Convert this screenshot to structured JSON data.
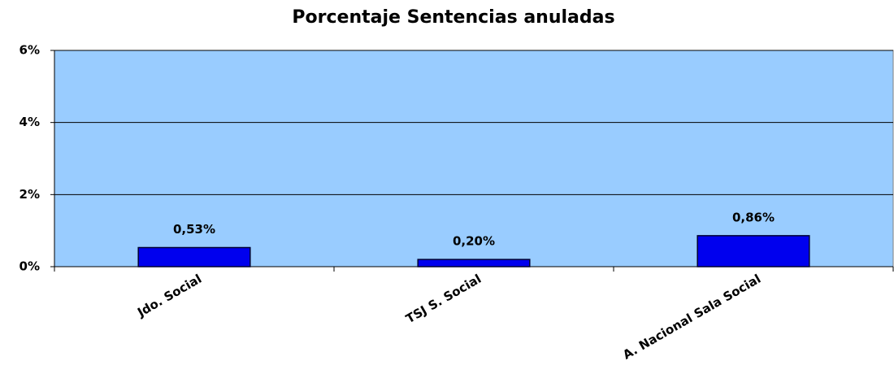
{
  "chart_data": {
    "type": "bar",
    "title": "Porcentaje Sentencias anuladas",
    "categories": [
      "Jdo. Social",
      "TSJ S. Social",
      "A. Nacional Sala Social"
    ],
    "values": [
      0.53,
      0.2,
      0.86
    ],
    "value_labels": [
      "0,53%",
      "0,20%",
      "0,86%"
    ],
    "color": "#0000ee",
    "ylim": [
      0,
      6
    ],
    "yticks": [
      {
        "value": 0,
        "label": "0%"
      },
      {
        "value": 2,
        "label": "2%"
      },
      {
        "value": 4,
        "label": "4%"
      },
      {
        "value": 6,
        "label": "6%"
      }
    ],
    "grid": true
  }
}
